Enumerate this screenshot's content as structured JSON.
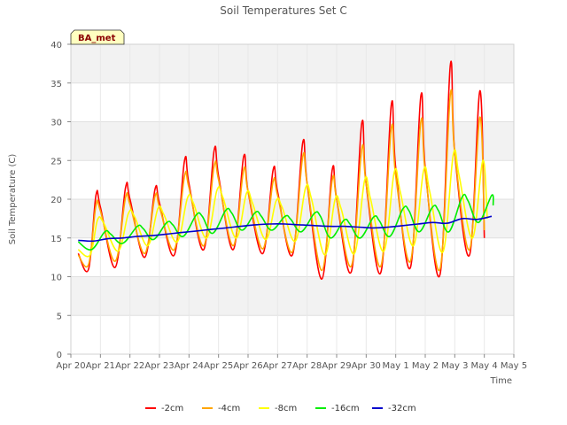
{
  "chart_data": {
    "type": "line",
    "title": "Soil Temperatures Set C",
    "xlabel": "Time",
    "ylabel": "Soil Temperature (C)",
    "badge": "BA_met",
    "ylim": [
      0,
      40
    ],
    "yticks": [
      0,
      5,
      10,
      15,
      20,
      25,
      30,
      35,
      40
    ],
    "xlim": [
      0,
      15
    ],
    "xticks": [
      0,
      1,
      2,
      3,
      4,
      5,
      6,
      7,
      8,
      9,
      10,
      11,
      12,
      13,
      14,
      15
    ],
    "xtick_labels": [
      "Apr 20",
      "Apr 21",
      "Apr 22",
      "Apr 23",
      "Apr 24",
      "Apr 25",
      "Apr 26",
      "Apr 27",
      "Apr 28",
      "Apr 29",
      "Apr 30",
      "May 1",
      "May 2",
      "May 3",
      "May 4",
      "May 5"
    ],
    "grid": true,
    "legend_position": "bottom",
    "series": [
      {
        "name": "-2cm",
        "color": "#ff0000",
        "x": [
          0.25,
          0.6,
          0.85,
          1.0,
          1.5,
          1.85,
          2.0,
          2.5,
          2.85,
          3.0,
          3.5,
          3.85,
          4.0,
          4.5,
          4.85,
          5.0,
          5.5,
          5.85,
          6.0,
          6.5,
          6.85,
          7.0,
          7.5,
          7.85,
          8.0,
          8.5,
          8.85,
          9.0,
          9.5,
          9.85,
          10.0,
          10.5,
          10.85,
          11.0,
          11.5,
          11.85,
          12.0,
          12.5,
          12.85,
          13.0,
          13.5,
          13.85,
          14.0
        ],
        "y": [
          13.0,
          11.0,
          20.5,
          19.0,
          11.2,
          21.5,
          20.0,
          12.5,
          21.3,
          19.5,
          12.8,
          25.0,
          22.0,
          13.5,
          26.3,
          23.0,
          13.5,
          25.5,
          21.0,
          13.0,
          23.8,
          21.0,
          12.8,
          27.3,
          22.0,
          9.7,
          23.8,
          20.0,
          10.7,
          29.8,
          22.0,
          10.6,
          32.2,
          24.0,
          11.2,
          33.3,
          24.0,
          10.3,
          37.3,
          26.0,
          12.8,
          34.0,
          15.0
        ]
      },
      {
        "name": "-4cm",
        "color": "#ffa500",
        "x": [
          0.25,
          0.6,
          0.85,
          1.0,
          1.5,
          1.85,
          2.0,
          2.5,
          2.85,
          3.0,
          3.5,
          3.85,
          4.0,
          4.5,
          4.85,
          5.0,
          5.5,
          5.85,
          6.0,
          6.5,
          6.85,
          7.0,
          7.5,
          7.85,
          8.0,
          8.5,
          8.85,
          9.0,
          9.5,
          9.85,
          10.0,
          10.5,
          10.85,
          11.0,
          11.5,
          11.85,
          12.0,
          12.5,
          12.85,
          13.0,
          13.5,
          13.85,
          14.0
        ],
        "y": [
          12.8,
          11.6,
          19.2,
          18.5,
          12.0,
          20.2,
          19.3,
          13.0,
          20.4,
          19.0,
          13.5,
          23.0,
          21.5,
          14.0,
          24.3,
          22.5,
          14.0,
          23.8,
          21.0,
          13.6,
          22.3,
          20.5,
          13.2,
          25.5,
          22.0,
          10.8,
          22.5,
          20.0,
          11.4,
          26.5,
          22.0,
          11.4,
          29.2,
          23.0,
          12.0,
          30.0,
          23.5,
          11.0,
          33.5,
          26.0,
          13.5,
          30.6,
          16.0
        ]
      },
      {
        "name": "-8cm",
        "color": "#ffff00",
        "x": [
          0.25,
          0.65,
          0.9,
          1.1,
          1.6,
          1.95,
          2.15,
          2.6,
          2.95,
          3.15,
          3.6,
          3.95,
          4.15,
          4.6,
          4.95,
          5.15,
          5.6,
          5.95,
          6.15,
          6.6,
          6.95,
          7.15,
          7.6,
          7.95,
          8.15,
          8.6,
          8.95,
          9.15,
          9.6,
          9.95,
          10.15,
          10.6,
          10.95,
          11.15,
          11.6,
          11.95,
          12.15,
          12.6,
          12.95,
          13.15,
          13.6,
          13.95,
          14.1
        ],
        "y": [
          13.5,
          12.8,
          17.3,
          17.0,
          13.3,
          18.2,
          17.8,
          14.0,
          18.8,
          18.0,
          14.5,
          20.2,
          19.5,
          15.0,
          21.2,
          20.2,
          15.0,
          20.8,
          19.5,
          14.8,
          19.8,
          19.0,
          14.6,
          21.5,
          20.0,
          12.8,
          20.0,
          18.8,
          13.0,
          22.5,
          20.0,
          13.3,
          23.5,
          21.0,
          14.0,
          23.8,
          21.0,
          13.2,
          25.8,
          23.0,
          15.0,
          25.0,
          17.5
        ]
      },
      {
        "name": "-16cm",
        "color": "#00ee00",
        "x": [
          0.25,
          0.7,
          1.15,
          1.35,
          1.75,
          2.25,
          2.45,
          2.8,
          3.25,
          3.45,
          3.8,
          4.25,
          4.45,
          4.8,
          5.25,
          5.45,
          5.8,
          6.25,
          6.45,
          6.8,
          7.25,
          7.45,
          7.8,
          8.25,
          8.45,
          8.8,
          9.25,
          9.45,
          9.8,
          10.25,
          10.45,
          10.8,
          11.25,
          11.45,
          11.8,
          12.25,
          12.45,
          12.8,
          13.25,
          13.45,
          13.8,
          14.25,
          14.3
        ],
        "y": [
          14.5,
          13.5,
          15.8,
          15.5,
          14.3,
          16.5,
          16.2,
          14.8,
          17.0,
          16.7,
          15.2,
          18.0,
          17.8,
          15.6,
          18.6,
          18.2,
          16.0,
          18.3,
          17.8,
          16.0,
          17.8,
          17.4,
          15.8,
          18.2,
          17.8,
          15.0,
          17.3,
          16.8,
          15.0,
          17.7,
          17.2,
          15.2,
          18.8,
          18.5,
          15.8,
          19.0,
          18.5,
          15.8,
          20.3,
          19.8,
          17.0,
          20.5,
          19.2
        ]
      },
      {
        "name": "-32cm",
        "color": "#0000cc",
        "x": [
          0.25,
          0.75,
          1.25,
          1.75,
          2.25,
          2.75,
          3.25,
          3.75,
          4.25,
          4.75,
          5.25,
          5.75,
          6.25,
          6.75,
          7.25,
          7.75,
          8.25,
          8.75,
          9.25,
          9.75,
          10.25,
          10.75,
          11.25,
          11.75,
          12.25,
          12.75,
          13.25,
          13.75,
          14.25
        ],
        "y": [
          14.7,
          14.6,
          14.9,
          15.0,
          15.2,
          15.3,
          15.5,
          15.7,
          15.9,
          16.1,
          16.3,
          16.5,
          16.7,
          16.8,
          16.8,
          16.7,
          16.6,
          16.5,
          16.5,
          16.4,
          16.3,
          16.4,
          16.6,
          16.8,
          17.0,
          16.9,
          17.5,
          17.4,
          17.8
        ]
      }
    ]
  }
}
